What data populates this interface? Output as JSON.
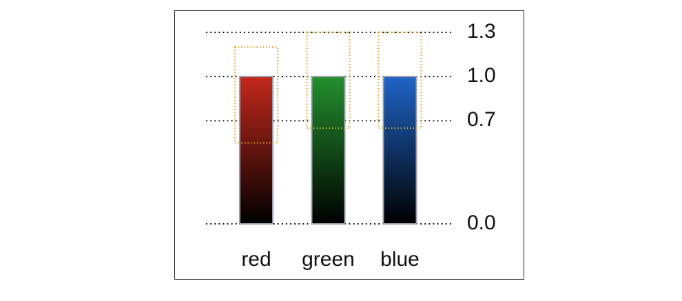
{
  "chart_data": {
    "type": "bar",
    "categories": [
      "red",
      "green",
      "blue"
    ],
    "series": [
      {
        "values": [
          1.0,
          1.0,
          1.0
        ],
        "colors": [
          "#c4281c",
          "#23902e",
          "#1f64c8"
        ]
      }
    ],
    "range_low": [
      0.55,
      0.65,
      0.65
    ],
    "range_high": [
      1.2,
      1.3,
      1.3
    ],
    "range_color": "#d9a224",
    "ylim": [
      0,
      1.3
    ],
    "yticks": [
      {
        "value": 0,
        "label": "0.0"
      },
      {
        "value": 0.7,
        "label": "0.7"
      },
      {
        "value": 1.0,
        "label": "1.0"
      },
      {
        "value": 1.3,
        "label": "1.3"
      }
    ],
    "grid": true
  }
}
